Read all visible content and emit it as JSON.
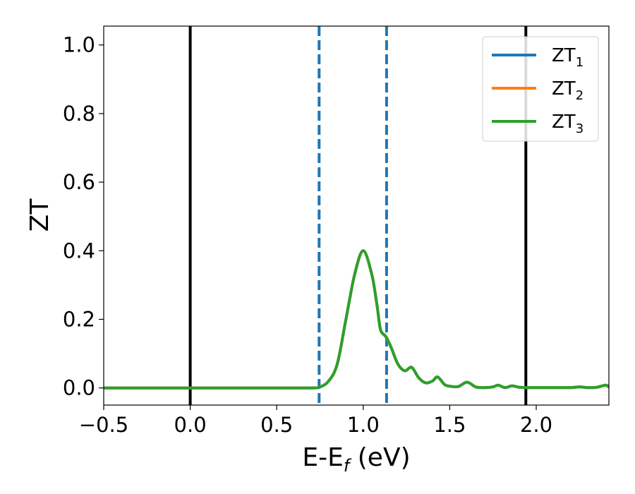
{
  "chart_data": {
    "type": "line",
    "xlabel_main": "E-E",
    "xlabel_sub": "f",
    "xlabel_unit": " (eV)",
    "ylabel": "ZT",
    "xlim": [
      -0.5,
      2.42
    ],
    "ylim": [
      -0.05,
      1.055
    ],
    "xticks": [
      -0.5,
      0.0,
      0.5,
      1.0,
      1.5,
      2.0
    ],
    "xtick_labels": [
      "−0.5",
      "0.0",
      "0.5",
      "1.0",
      "1.5",
      "2.0"
    ],
    "yticks": [
      0.0,
      0.2,
      0.4,
      0.6,
      0.8,
      1.0
    ],
    "ytick_labels": [
      "0.0",
      "0.2",
      "0.4",
      "0.6",
      "0.8",
      "1.0"
    ],
    "grid": false,
    "legend_position": "top-right",
    "vlines_solid": [
      0.0,
      1.94
    ],
    "vlines_dashed": [
      0.745,
      1.135
    ],
    "vline_solid_color": "#000000",
    "vline_dashed_color": "#1f77b4",
    "series": [
      {
        "name": "ZT",
        "name_sub": "1",
        "color": "#1f77b4",
        "x": [
          -0.5,
          0.0,
          0.5,
          0.7,
          0.75,
          0.8,
          0.85,
          0.9,
          0.95,
          1.0,
          1.05,
          1.08,
          1.1,
          1.13,
          1.16,
          1.2,
          1.24,
          1.28,
          1.32,
          1.36,
          1.4,
          1.43,
          1.47,
          1.5,
          1.55,
          1.6,
          1.65,
          1.7,
          1.75,
          1.78,
          1.82,
          1.86,
          1.9,
          1.95,
          2.0,
          2.1,
          2.2,
          2.25,
          2.3,
          2.35,
          2.4,
          2.42
        ],
        "y": [
          0,
          0,
          0,
          0,
          0.003,
          0.02,
          0.07,
          0.2,
          0.33,
          0.4,
          0.33,
          0.24,
          0.17,
          0.15,
          0.12,
          0.07,
          0.05,
          0.06,
          0.03,
          0.015,
          0.02,
          0.032,
          0.01,
          0.005,
          0.004,
          0.017,
          0.003,
          0.001,
          0.003,
          0.008,
          0.001,
          0.006,
          0.002,
          0.001,
          0.001,
          0.001,
          0.001,
          0.003,
          0.001,
          0.002,
          0.008,
          0.003
        ]
      },
      {
        "name": "ZT",
        "name_sub": "2",
        "color": "#ff7f0e",
        "x": [
          -0.5,
          0.0,
          0.5,
          0.7,
          0.75,
          0.8,
          0.85,
          0.9,
          0.95,
          1.0,
          1.05,
          1.08,
          1.1,
          1.13,
          1.16,
          1.2,
          1.24,
          1.28,
          1.32,
          1.36,
          1.4,
          1.43,
          1.47,
          1.5,
          1.55,
          1.6,
          1.65,
          1.7,
          1.75,
          1.78,
          1.82,
          1.86,
          1.9,
          1.95,
          2.0,
          2.1,
          2.2,
          2.25,
          2.3,
          2.35,
          2.4,
          2.42
        ],
        "y": [
          0,
          0,
          0,
          0,
          0.003,
          0.02,
          0.07,
          0.2,
          0.33,
          0.4,
          0.33,
          0.24,
          0.17,
          0.15,
          0.12,
          0.07,
          0.05,
          0.06,
          0.03,
          0.015,
          0.02,
          0.032,
          0.01,
          0.005,
          0.004,
          0.017,
          0.003,
          0.001,
          0.003,
          0.008,
          0.001,
          0.006,
          0.002,
          0.001,
          0.001,
          0.001,
          0.001,
          0.003,
          0.001,
          0.002,
          0.008,
          0.003
        ]
      },
      {
        "name": "ZT",
        "name_sub": "3",
        "color": "#2ca02c",
        "x": [
          -0.5,
          0.0,
          0.5,
          0.7,
          0.75,
          0.8,
          0.85,
          0.9,
          0.95,
          1.0,
          1.05,
          1.08,
          1.1,
          1.13,
          1.16,
          1.2,
          1.24,
          1.28,
          1.32,
          1.36,
          1.4,
          1.43,
          1.47,
          1.5,
          1.55,
          1.6,
          1.65,
          1.7,
          1.75,
          1.78,
          1.82,
          1.86,
          1.9,
          1.95,
          2.0,
          2.1,
          2.2,
          2.25,
          2.3,
          2.35,
          2.4,
          2.42
        ],
        "y": [
          0,
          0,
          0,
          0,
          0.003,
          0.02,
          0.07,
          0.2,
          0.33,
          0.4,
          0.33,
          0.24,
          0.17,
          0.15,
          0.12,
          0.07,
          0.05,
          0.06,
          0.03,
          0.015,
          0.02,
          0.032,
          0.01,
          0.005,
          0.004,
          0.017,
          0.003,
          0.001,
          0.003,
          0.008,
          0.001,
          0.006,
          0.002,
          0.001,
          0.001,
          0.001,
          0.001,
          0.003,
          0.001,
          0.002,
          0.008,
          0.003
        ]
      }
    ]
  }
}
